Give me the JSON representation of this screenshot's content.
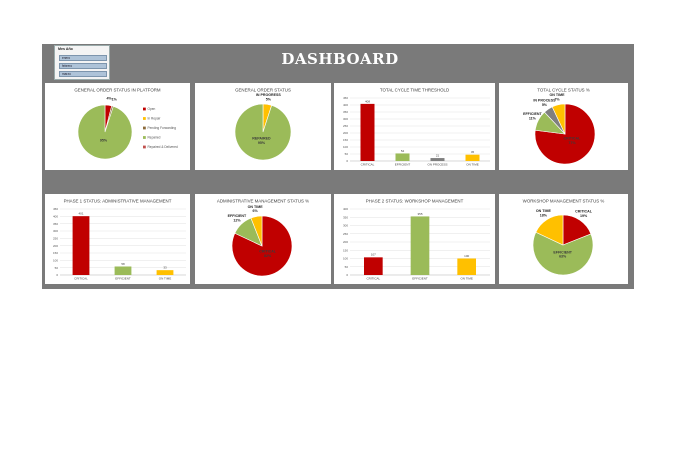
{
  "dashboard": {
    "title": "DASHBOARD",
    "slicer": {
      "title": "Mes Año",
      "items": [
        "enero",
        "febrero",
        "marzo"
      ]
    },
    "colors": {
      "critical": "#c00000",
      "efficient": "#9bbb59",
      "on_time": "#ffc000",
      "in_process": "#7f7f7f",
      "background": "#7a7a7a",
      "slicer_item": "#aec3d8"
    }
  },
  "chart_data": [
    {
      "id": "general-order-platform",
      "type": "pie",
      "title": "GENERAL ORDER STATUS IN PLATFORM",
      "labels": [
        "Open",
        "In Repair",
        "Pending Forwarding",
        "Repaired",
        "Repaired & Delivered"
      ],
      "values": [
        4,
        0,
        1,
        95,
        0
      ],
      "data_labels": [
        "4%",
        "",
        "1%",
        "95%",
        ""
      ],
      "colors": [
        "#c00000",
        "#ffc000",
        "#8c6a3a",
        "#9bbb59",
        "#c0504d"
      ],
      "legend": "right"
    },
    {
      "id": "general-order-status",
      "type": "pie",
      "title": "GENERAL ORDER STATUS",
      "labels": [
        "IN PROGRESS",
        "REPAIRED"
      ],
      "values": [
        5,
        95
      ],
      "data_labels": [
        "IN PROGRESS\n5%",
        "REPAIRED\n95%"
      ],
      "colors": [
        "#ffc000",
        "#9bbb59"
      ]
    },
    {
      "id": "total-cycle-threshold",
      "type": "bar",
      "title": "TOTAL CYCLE TIME THRESHOLD",
      "categories": [
        "CRITICAL",
        "EFFICIENT",
        "ON PROCESS",
        "ON TIME"
      ],
      "values": [
        408,
        54,
        21,
        45
      ],
      "colors": [
        "#c00000",
        "#9bbb59",
        "#7f7f7f",
        "#ffc000"
      ],
      "ylim": [
        0,
        450
      ],
      "yticks": [
        "0",
        "50",
        "100",
        "150",
        "200",
        "250",
        "300",
        "350",
        "400",
        "450"
      ],
      "grid": true
    },
    {
      "id": "total-cycle-status",
      "type": "pie",
      "title": "TOTAL CYCLE STATUS %",
      "labels": [
        "CRITICAL",
        "EFFICIENT",
        "IN PROCESS",
        "ON TIME"
      ],
      "values": [
        77,
        11,
        5,
        7
      ],
      "data_labels": [
        "CRITICAL\n77%",
        "EFFICIENT\n11%",
        "IN PROCESS\n5%",
        "ON TIME\n7%"
      ],
      "colors": [
        "#c00000",
        "#9bbb59",
        "#7f7f7f",
        "#ffc000"
      ]
    },
    {
      "id": "phase1-admin",
      "type": "bar",
      "title": "PHASE 1 STATUS: ADMINISTRATIVE MANAGEMENT",
      "categories": [
        "CRITICAL",
        "EFFICIENT",
        "ON TIME"
      ],
      "values": [
        401,
        58,
        33
      ],
      "colors": [
        "#c00000",
        "#9bbb59",
        "#ffc000"
      ],
      "ylim": [
        0,
        450
      ],
      "yticks": [
        "0",
        "50",
        "100",
        "150",
        "200",
        "250",
        "300",
        "350",
        "400",
        "450"
      ],
      "grid": true
    },
    {
      "id": "admin-status",
      "type": "pie",
      "title": "ADMINISTRATIVE MANAGEMENT STATUS %",
      "labels": [
        "CRITICAL",
        "EFFICIENT",
        "ON TIME"
      ],
      "values": [
        82,
        12,
        6
      ],
      "data_labels": [
        "CRITICAL\n82%",
        "EFFICIENT\n12%",
        "ON TIME\n6%"
      ],
      "colors": [
        "#c00000",
        "#9bbb59",
        "#ffc000"
      ]
    },
    {
      "id": "phase2-workshop",
      "type": "bar",
      "title": "PHASE 2 STATUS: WORKSHOP MANAGEMENT",
      "categories": [
        "CRITICAL",
        "EFFICIENT",
        "ON TIME"
      ],
      "values": [
        107,
        355,
        100
      ],
      "colors": [
        "#c00000",
        "#9bbb59",
        "#ffc000"
      ],
      "ylim": [
        0,
        400
      ],
      "yticks": [
        "0",
        "50",
        "100",
        "150",
        "200",
        "250",
        "300",
        "350",
        "400"
      ],
      "grid": true
    },
    {
      "id": "workshop-status",
      "type": "pie",
      "title": "WORKSHOP MANAGEMENT STATUS %",
      "labels": [
        "CRITICAL",
        "EFFICIENT",
        "ON TIME"
      ],
      "values": [
        19,
        63,
        18
      ],
      "data_labels": [
        "CRITICAL\n19%",
        "EFFICIENT\n63%",
        "ON TIME\n18%"
      ],
      "colors": [
        "#c00000",
        "#9bbb59",
        "#ffc000"
      ]
    }
  ]
}
